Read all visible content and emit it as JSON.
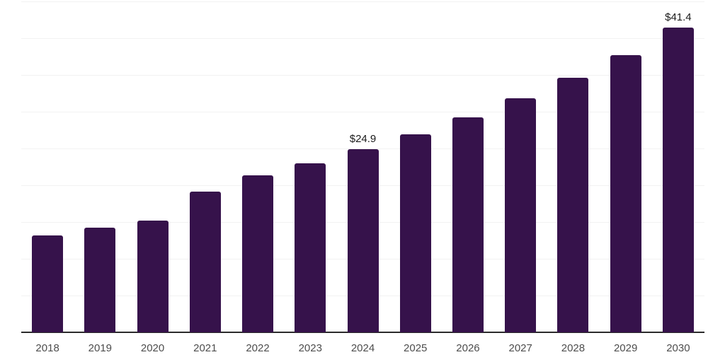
{
  "chart_data": {
    "type": "bar",
    "categories": [
      "2018",
      "2019",
      "2020",
      "2021",
      "2022",
      "2023",
      "2024",
      "2025",
      "2026",
      "2027",
      "2028",
      "2029",
      "2030"
    ],
    "values": [
      13.2,
      14.2,
      15.2,
      19.1,
      21.3,
      23.0,
      24.9,
      26.9,
      29.2,
      31.8,
      34.6,
      37.7,
      41.4
    ],
    "data_labels": [
      {
        "category": "2024",
        "text": "$24.9"
      },
      {
        "category": "2030",
        "text": "$41.4"
      }
    ],
    "title": "",
    "xlabel": "",
    "ylabel": "",
    "ylim": [
      0,
      45
    ],
    "grid_step": 5,
    "grid": "horizontal only, no y-axis tick labels",
    "legend_position": "none",
    "colors": {
      "bar": "#36124b",
      "gridline": "#f2f2f2",
      "axis_line": "#2b2b2b",
      "x_tick_label": "#4d4d4d",
      "data_label": "#1a1a1a",
      "background": "#ffffff"
    }
  }
}
